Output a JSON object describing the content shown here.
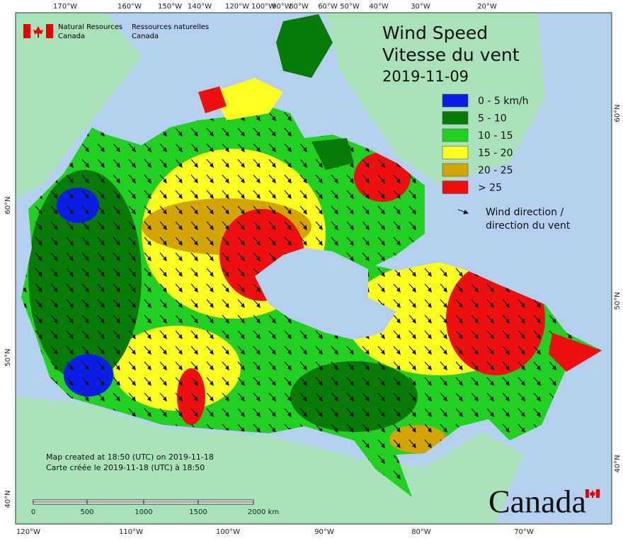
{
  "header": {
    "agency_en": [
      "Natural Resources",
      "Canada"
    ],
    "agency_fr": [
      "Ressources naturelles",
      "Canada"
    ]
  },
  "title": {
    "en": "Wind Speed",
    "fr": "Vitesse du vent",
    "date": "2019-11-09"
  },
  "legend": {
    "items": [
      {
        "label": "0 - 5 km/h",
        "color": "#0a1ee6"
      },
      {
        "label": "5 - 10",
        "color": "#087a08"
      },
      {
        "label": "10 - 15",
        "color": "#22d022"
      },
      {
        "label": "15 - 20",
        "color": "#ffff22"
      },
      {
        "label": "20 - 25",
        "color": "#d4a400"
      },
      {
        "label": "> 25",
        "color": "#ee1010"
      }
    ],
    "direction": [
      "Wind direction /",
      "direction du vent"
    ]
  },
  "graticule": {
    "top": [
      "170°W",
      "160°W",
      "150°W",
      "140°W",
      "120°W",
      "100°W",
      "90°W",
      "80°W",
      "60°W",
      "50°W",
      "40°W",
      "30°W",
      "20°W"
    ],
    "bottom": [
      "120°W",
      "110°W",
      "100°W",
      "90°W",
      "80°W",
      "70°W"
    ],
    "left": [
      "60°N",
      "50°N",
      "40°N"
    ],
    "right": [
      "60°N",
      "50°N",
      "40°N"
    ]
  },
  "footer": [
    "Map created at 18:50 (UTC) on 2019-11-18",
    "Carte créée le 2019-11-18 (UTC) à 18:50"
  ],
  "scale": [
    "0",
    "500",
    "1000",
    "1500",
    "2000 km"
  ],
  "wordmark": "Canada"
}
